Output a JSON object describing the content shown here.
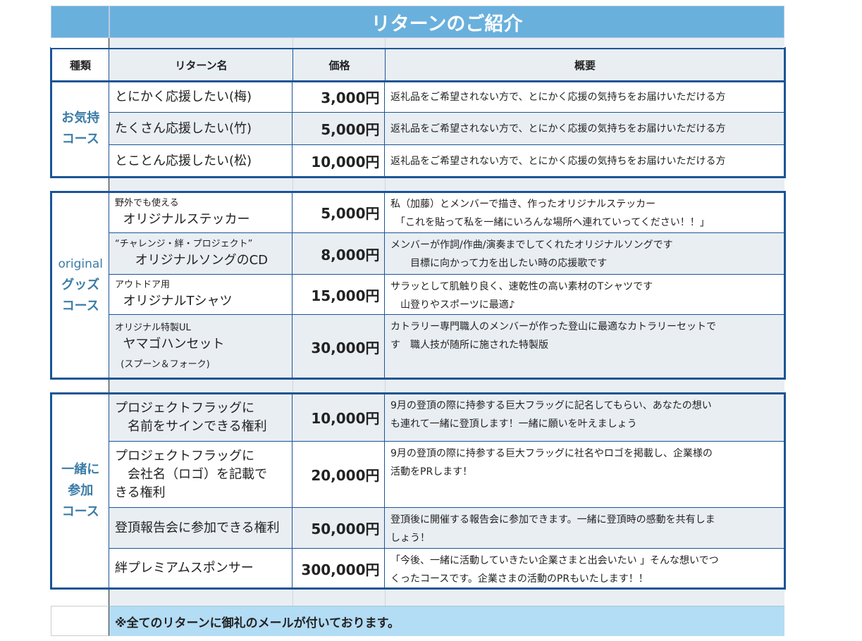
{
  "title": "リターンのご紹介",
  "headers": {
    "type": "種類",
    "name": "リターン名",
    "price": "価格",
    "desc": "概要"
  },
  "sections": [
    {
      "type_lines": [
        "お気持",
        "コース"
      ],
      "rows": [
        {
          "name": [
            "とにかく応援したい(梅)"
          ],
          "price": "3,000円",
          "desc": [
            "返礼品をご希望されない方で、とにかく応援の気持ちをお届けいただける方"
          ]
        },
        {
          "name": [
            "たくさん応援したい(竹)"
          ],
          "price": "5,000円",
          "desc": [
            "返礼品をご希望されない方で、とにかく応援の気持ちをお届けいただける方"
          ]
        },
        {
          "name": [
            "とことん応援したい(松)"
          ],
          "price": "10,000円",
          "desc": [
            "返礼品をご希望されない方で、とにかく応援の気持ちをお届けいただける方"
          ]
        }
      ]
    },
    {
      "type_prefix": "original",
      "type_lines": [
        "グッズ",
        "コース"
      ],
      "rows": [
        {
          "sub": "野外でも使える",
          "name": [
            "  オリジナルステッカー"
          ],
          "price": "5,000円",
          "desc": [
            "私（加藤）とメンバーで描き、作ったオリジナルステッカー",
            "　「これを貼って私を一緒にいろんな場所へ連れていってください！！」"
          ]
        },
        {
          "sub": "“チャレンジ・絆・プロジェクト”",
          "name": [
            "     オリジナルソングのCD"
          ],
          "price": "8,000円",
          "desc": [
            "メンバーが作詞/作曲/演奏までしてくれたオリジナルソングです",
            "　　目標に向かって力を出したい時の応援歌です"
          ]
        },
        {
          "sub": "アウトドア用",
          "name": [
            "  オリジナルTシャツ"
          ],
          "price": "15,000円",
          "desc": [
            "サラッとして肌触り良く、速乾性の高い素材のTシャツです",
            "　山登りやスポーツに最適♪"
          ]
        },
        {
          "sub": "オリジナル特製UL",
          "name": [
            "  ヤマゴハンセット"
          ],
          "note": "  (スプーン＆フォーク)",
          "price": "30,000円",
          "desc": [
            "カトラリー専門職人のメンバーが作った登山に最適なカトラリーセットで",
            "す　職人技が随所に施された特製版"
          ]
        }
      ]
    },
    {
      "type_lines": [
        "一緒に",
        "参加",
        "コース"
      ],
      "rows": [
        {
          "name": [
            "プロジェクトフラッグに",
            "　名前をサインできる権利"
          ],
          "price": "10,000円",
          "desc": [
            "9月の登頂の際に持参する巨大フラッグに記名してもらい、あなたの想い",
            "も連れて一緒に登頂します！一緒に願いを叶えましょう"
          ]
        },
        {
          "name": [
            "プロジェクトフラッグに",
            "　会社名（ロゴ）を記載で",
            "きる権利"
          ],
          "price": "20,000円",
          "desc": [
            "9月の登頂の際に持参する巨大フラッグに社名やロゴを掲載し、企業様の",
            "活動をPRします！"
          ]
        },
        {
          "name": [
            "登頂報告会に参加できる権利"
          ],
          "price": "50,000円",
          "desc": [
            "登頂後に開催する報告会に参加できます。一緒に登頂時の感動を共有しま",
            "しょう！"
          ]
        },
        {
          "name": [
            "絆プレミアムスポンサー"
          ],
          "price": "300,000円",
          "desc": [
            "「今後、一緒に活動していきたい企業さまと出会いたい 」そんな想いでつ",
            "くったコースです。企業さまの活動のPRもいたします！！"
          ]
        }
      ]
    }
  ],
  "footer": "※全てのリターンに御礼のメールが付いております。",
  "colors": {
    "border": "#1a5596",
    "title_bg": "#69b0dd",
    "footer_bg": "#b3dcf5",
    "type_text": "#3b7ca6",
    "row_alt": "#e9eef3"
  }
}
